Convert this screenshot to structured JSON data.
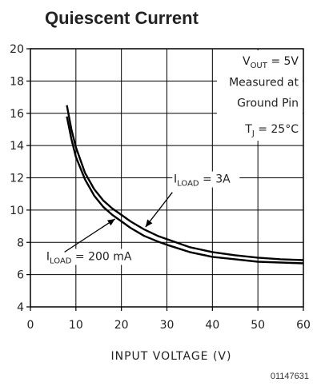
{
  "figure_code": "01147631",
  "chart_data": {
    "type": "line",
    "title": "Quiescent Current",
    "xlabel": "INPUT VOLTAGE (V)",
    "ylabel": "",
    "xlim": [
      0,
      60
    ],
    "ylim": [
      4,
      20
    ],
    "x_ticks": [
      0,
      10,
      20,
      30,
      40,
      50,
      60
    ],
    "y_ticks": [
      4,
      6,
      8,
      10,
      12,
      14,
      16,
      18,
      20
    ],
    "grid": true,
    "conditions": {
      "line1": {
        "main": "V",
        "sub": "OUT",
        "rest": " = 5V"
      },
      "line2": "Measured at",
      "line3": "Ground Pin",
      "line4": {
        "main": "T",
        "sub": "J",
        "rest": " = 25°C"
      }
    },
    "series": [
      {
        "label": {
          "main": "I",
          "sub": "LOAD",
          "rest": " = 3A"
        },
        "x": [
          8,
          9,
          10,
          12,
          14,
          16,
          18,
          20,
          22,
          25,
          28,
          30,
          35,
          40,
          45,
          50,
          55,
          60
        ],
        "y": [
          16.5,
          15.0,
          13.9,
          12.3,
          11.3,
          10.6,
          10.1,
          9.7,
          9.3,
          8.8,
          8.4,
          8.2,
          7.7,
          7.4,
          7.2,
          7.05,
          6.95,
          6.9
        ]
      },
      {
        "label": {
          "main": "I",
          "sub": "LOAD",
          "rest": " = 200 mA"
        },
        "x": [
          8,
          9,
          10,
          12,
          14,
          16,
          18,
          20,
          22,
          25,
          28,
          30,
          35,
          40,
          45,
          50,
          55,
          60
        ],
        "y": [
          15.8,
          14.4,
          13.3,
          11.9,
          10.9,
          10.2,
          9.7,
          9.3,
          8.9,
          8.4,
          8.05,
          7.85,
          7.4,
          7.1,
          6.95,
          6.8,
          6.75,
          6.7
        ]
      }
    ]
  }
}
